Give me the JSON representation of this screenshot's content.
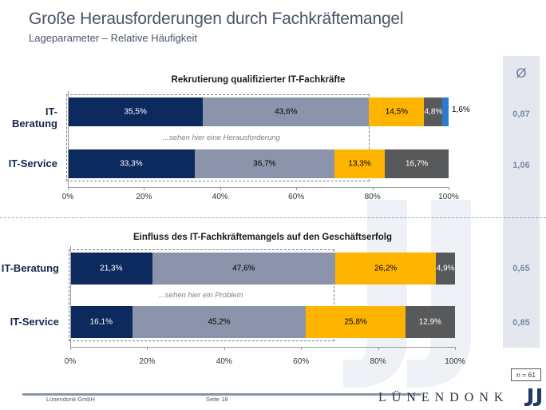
{
  "title": "Große Herausforderungen durch Fachkräftemangel",
  "subtitle": "Lageparameter – Relative Häufigkeit",
  "avg_header": "Ø",
  "sample_size": "n = 61",
  "footer": {
    "company": "Lünendonk GmbH",
    "page": "Seite 18",
    "logo": "LÜNENDONK"
  },
  "colors": {
    "dark_blue": "#0d2a5e",
    "grey_blue": "#8c94ab",
    "yellow": "#ffb400",
    "dark_grey": "#58595b",
    "light_blue": "#2f7ad1"
  },
  "chart_data": [
    {
      "type": "bar",
      "orientation": "horizontal",
      "stacked": true,
      "title": "Rekrutierung qualifizierter IT-Fachkräfte",
      "categories": [
        "IT-Beratung",
        "IT-Service"
      ],
      "series": [
        {
          "values": [
            35.5,
            33.3
          ],
          "labels": [
            "35,5%",
            "33,3%"
          ],
          "color": "#0d2a5e"
        },
        {
          "values": [
            43.6,
            36.7
          ],
          "labels": [
            "43,6%",
            "36,7%"
          ],
          "color": "#8c94ab"
        },
        {
          "values": [
            14.5,
            13.3
          ],
          "labels": [
            "14,5%",
            "13,3%"
          ],
          "color": "#ffb400"
        },
        {
          "values": [
            4.8,
            16.7
          ],
          "labels": [
            "4,8%",
            "16,7%"
          ],
          "color": "#58595b"
        },
        {
          "values": [
            1.6,
            0
          ],
          "labels": [
            "1,6%",
            ""
          ],
          "color": "#2f7ad1"
        }
      ],
      "averages": [
        "0,87",
        "1,06"
      ],
      "annotation": "...sehen hier eine Herausforderung",
      "xlim": [
        0,
        100
      ],
      "xticks": [
        "0%",
        "20%",
        "40%",
        "60%",
        "80%",
        "100%"
      ]
    },
    {
      "type": "bar",
      "orientation": "horizontal",
      "stacked": true,
      "title": "Einfluss des IT-Fachkräftemangels auf den Geschäftserfolg",
      "categories": [
        "IT-Beratung",
        "IT-Service"
      ],
      "series": [
        {
          "values": [
            21.3,
            16.1
          ],
          "labels": [
            "21,3%",
            "16,1%"
          ],
          "color": "#0d2a5e"
        },
        {
          "values": [
            47.6,
            45.2
          ],
          "labels": [
            "47,6%",
            "45,2%"
          ],
          "color": "#8c94ab"
        },
        {
          "values": [
            26.2,
            25.8
          ],
          "labels": [
            "26,2%",
            "25,8%"
          ],
          "color": "#ffb400"
        },
        {
          "values": [
            4.9,
            12.9
          ],
          "labels": [
            "4,9%",
            "12,9%"
          ],
          "color": "#58595b"
        }
      ],
      "averages": [
        "0,65",
        "0,85"
      ],
      "annotation": "...sehen hier ein Problem",
      "xlim": [
        0,
        100
      ],
      "xticks": [
        "0%",
        "20%",
        "40%",
        "60%",
        "80%",
        "100%"
      ]
    }
  ]
}
